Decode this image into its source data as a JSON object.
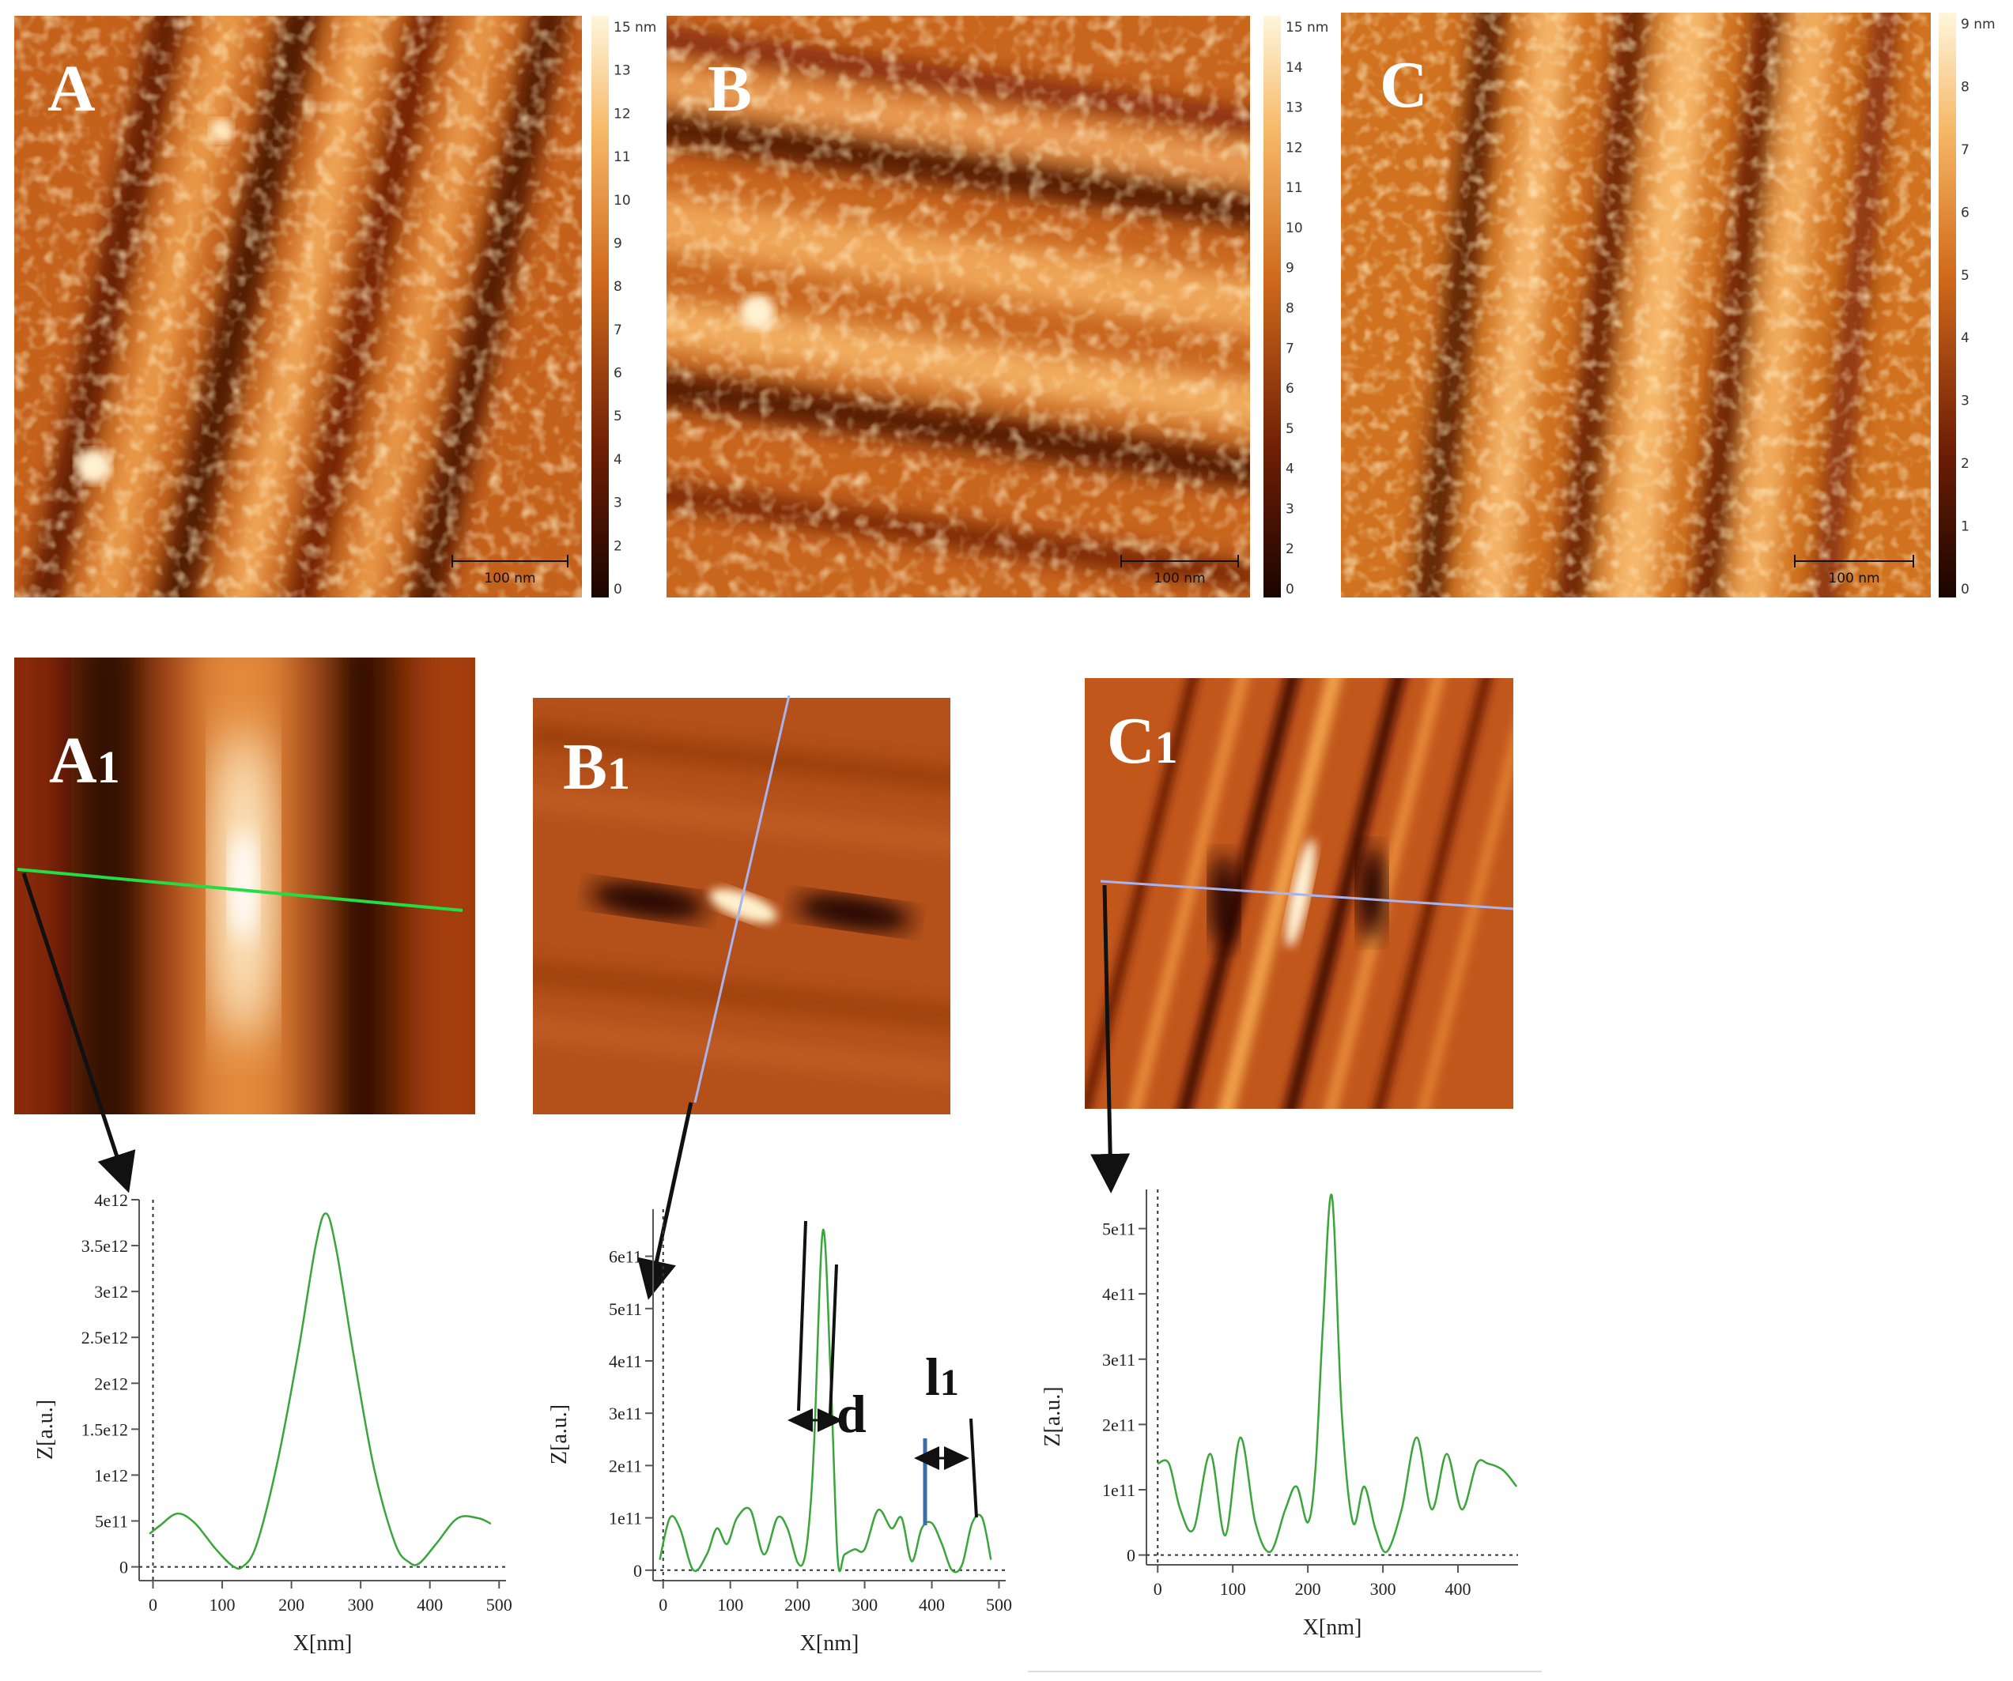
{
  "afm_panels": [
    {
      "label": "A",
      "scale_bar": "100 nm",
      "colorbar_ticks": [
        "15 nm",
        "13",
        "12",
        "11",
        "10",
        "9",
        "8",
        "7",
        "6",
        "5",
        "4",
        "3",
        "2",
        "0"
      ],
      "stripe_direction": "diagonal"
    },
    {
      "label": "B",
      "scale_bar": "100 nm",
      "colorbar_ticks": [
        "15 nm",
        "14",
        "13",
        "12",
        "11",
        "10",
        "9",
        "8",
        "7",
        "6",
        "5",
        "4",
        "3",
        "2",
        "0"
      ],
      "stripe_direction": "horizontal"
    },
    {
      "label": "C",
      "scale_bar": "100 nm",
      "colorbar_ticks": [
        "9 nm",
        "8",
        "7",
        "6",
        "5",
        "4",
        "3",
        "2",
        "1",
        "0"
      ],
      "stripe_direction": "vertical"
    }
  ],
  "fft_panels": [
    {
      "label_main": "A",
      "label_sub": "1",
      "profile_line_color": "#22dd44"
    },
    {
      "label_main": "B",
      "label_sub": "1",
      "profile_line_color": "#a8b4f0"
    },
    {
      "label_main": "C",
      "label_sub": "1",
      "profile_line_color": "#a8b4f0"
    }
  ],
  "annotations": {
    "d": "d",
    "l1_main": "l",
    "l1_sub": "1"
  },
  "colors": {
    "profile_curve": "#3aa53a",
    "afm_dark": "#1a0500",
    "afm_mid": "#c8601a",
    "afm_light": "#fff3c8",
    "arrow": "#111111"
  },
  "chart_data": [
    {
      "type": "line",
      "xlabel": "X[nm]",
      "ylabel": "Z[a.u.]",
      "xlim": [
        -20,
        510
      ],
      "ylim": [
        -150000000000.0,
        4000000000000.0
      ],
      "x_ticks": [
        0,
        100,
        200,
        300,
        400,
        500
      ],
      "x_tick_labels": [
        "0",
        "100",
        "200",
        "300",
        "400",
        "500"
      ],
      "y_ticks": [
        0,
        500000000000.0,
        1000000000000.0,
        1500000000000.0,
        2000000000000.0,
        2500000000000.0,
        3000000000000.0,
        3500000000000.0,
        4000000000000.0
      ],
      "y_tick_labels": [
        "0",
        "5e11",
        "1e12",
        "1.5e12",
        "2e12",
        "2.5e12",
        "3e12",
        "3.5e12",
        "4e12"
      ],
      "x": [
        -5,
        10,
        35,
        60,
        90,
        115,
        130,
        150,
        180,
        210,
        235,
        250,
        265,
        290,
        320,
        350,
        370,
        385,
        410,
        440,
        470,
        488
      ],
      "values": [
        360000000000.0,
        450000000000.0,
        580000000000.0,
        480000000000.0,
        200000000000.0,
        10000000000.0,
        5000000000.0,
        250000000000.0,
        1150000000000.0,
        2350000000000.0,
        3500000000000.0,
        3850000000000.0,
        3450000000000.0,
        2300000000000.0,
        1050000000000.0,
        250000000000.0,
        50000000000.0,
        40000000000.0,
        260000000000.0,
        530000000000.0,
        530000000000.0,
        470000000000.0
      ]
    },
    {
      "type": "line",
      "xlabel": "X[nm]",
      "ylabel": "Z[a.u.]",
      "xlim": [
        -15,
        510
      ],
      "ylim": [
        -20000000000.0,
        690000000000.0
      ],
      "x_ticks": [
        0,
        100,
        200,
        300,
        400,
        500
      ],
      "x_tick_labels": [
        "0",
        "100",
        "200",
        "300",
        "400",
        "500"
      ],
      "y_ticks": [
        0,
        100000000000.0,
        200000000000.0,
        300000000000.0,
        400000000000.0,
        500000000000.0,
        600000000000.0
      ],
      "y_tick_labels": [
        "0",
        "1e11",
        "2e11",
        "3e11",
        "4e11",
        "5e11",
        "6e11"
      ],
      "x": [
        -5,
        10,
        25,
        45,
        65,
        80,
        95,
        110,
        130,
        150,
        170,
        185,
        200,
        210,
        218,
        225,
        238,
        250,
        260,
        270,
        285,
        300,
        320,
        340,
        355,
        370,
        385,
        400,
        415,
        430,
        445,
        460,
        475,
        488
      ],
      "values": [
        20000000000.0,
        100000000000.0,
        80000000000.0,
        0,
        30000000000.0,
        80000000000.0,
        50000000000.0,
        100000000000.0,
        115000000000.0,
        30000000000.0,
        100000000000.0,
        80000000000.0,
        15000000000.0,
        20000000000.0,
        100000000000.0,
        250000000000.0,
        650000000000.0,
        350000000000.0,
        20000000000.0,
        30000000000.0,
        40000000000.0,
        40000000000.0,
        115000000000.0,
        80000000000.0,
        100000000000.0,
        17000000000.0,
        80000000000.0,
        90000000000.0,
        50000000000.0,
        0,
        10000000000.0,
        90000000000.0,
        100000000000.0,
        20000000000.0
      ]
    },
    {
      "type": "line",
      "xlabel": "X[nm]",
      "ylabel": "Z[a.u.]",
      "xlim": [
        -15,
        480
      ],
      "ylim": [
        -15000000000.0,
        560000000000.0
      ],
      "x_ticks": [
        0,
        100,
        200,
        300,
        400
      ],
      "x_tick_labels": [
        "0",
        "100",
        "200",
        "300",
        "400"
      ],
      "y_ticks": [
        0,
        100000000000.0,
        200000000000.0,
        300000000000.0,
        400000000000.0,
        500000000000.0
      ],
      "y_tick_labels": [
        "0",
        "1e11",
        "2e11",
        "3e11",
        "4e11",
        "5e11"
      ],
      "x": [
        0,
        15,
        30,
        48,
        70,
        90,
        110,
        130,
        150,
        170,
        185,
        200,
        210,
        220,
        232,
        245,
        260,
        275,
        290,
        305,
        325,
        345,
        365,
        385,
        405,
        425,
        440,
        460,
        478
      ],
      "values": [
        140000000000.0,
        140000000000.0,
        70000000000.0,
        40000000000.0,
        155000000000.0,
        30000000000.0,
        180000000000.0,
        50000000000.0,
        5000000000.0,
        70000000000.0,
        105000000000.0,
        50000000000.0,
        130000000000.0,
        350000000000.0,
        550000000000.0,
        220000000000.0,
        50000000000.0,
        105000000000.0,
        40000000000.0,
        5000000000.0,
        70000000000.0,
        180000000000.0,
        70000000000.0,
        155000000000.0,
        70000000000.0,
        140000000000.0,
        140000000000.0,
        130000000000.0,
        105000000000.0
      ]
    }
  ]
}
